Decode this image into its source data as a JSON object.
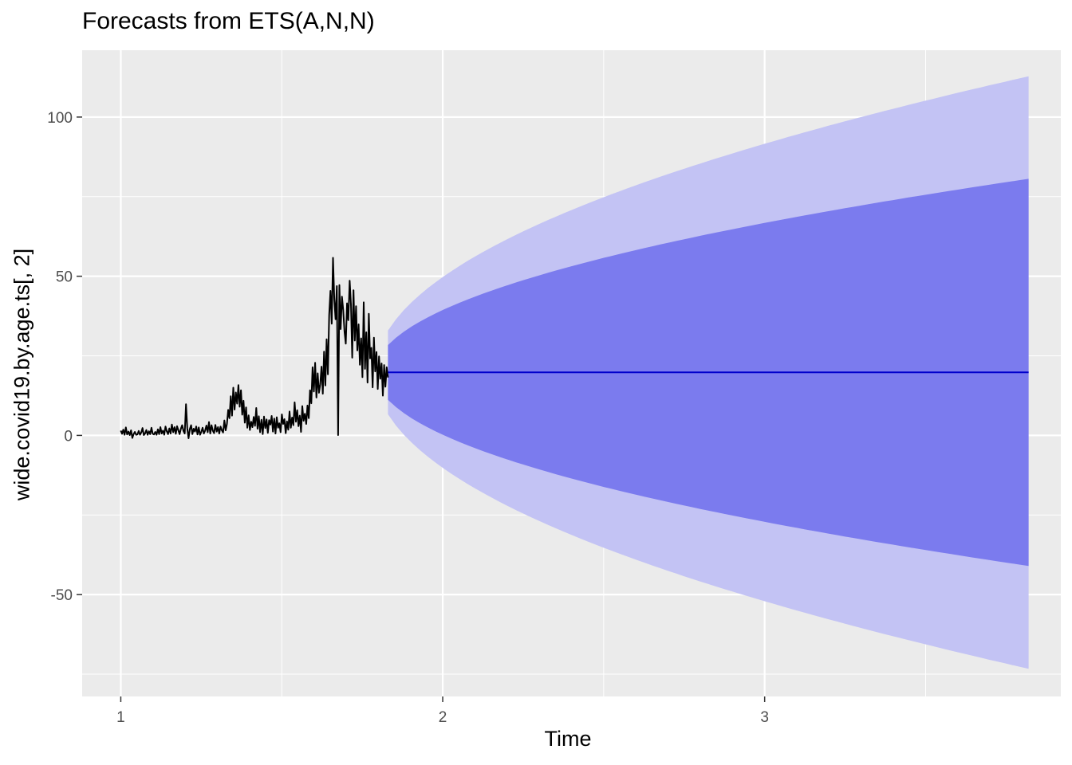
{
  "chart_data": {
    "type": "line",
    "title": "Forecasts from ETS(A,N,N)",
    "xlabel": "Time",
    "ylabel": "wide.covid19.by.age.ts[, 2]",
    "xlim": [
      0.88,
      3.92
    ],
    "ylim": [
      -82,
      121
    ],
    "x_ticks": [
      1,
      2,
      3
    ],
    "y_ticks": [
      -50,
      0,
      50,
      100
    ],
    "grid": true,
    "legend": "none",
    "colors": {
      "panel": "#ebebeb",
      "grid": "#ffffff",
      "observed": "#000000",
      "forecast": "#0000cc",
      "interval80": "#7b7bee",
      "interval95": "#c3c3f4"
    },
    "observed": {
      "x_start": 1.0,
      "x_end": 1.83,
      "y": [
        1.5,
        0.5,
        1.8,
        0.2,
        2.5,
        0.3,
        1.2,
        0.1,
        1.6,
        -0.8,
        0.4,
        1.1,
        0.2,
        0.3,
        1.4,
        0.2,
        0.9,
        2.3,
        0.1,
        0.6,
        1.7,
        0.2,
        1.3,
        0.4,
        2.4,
        0.5,
        0.3,
        1.1,
        0.2,
        1.9,
        0.4,
        2.6,
        0.6,
        1.5,
        0.2,
        2.8,
        1.3,
        0.4,
        2.2,
        0.6,
        3.4,
        1.0,
        2.6,
        0.5,
        2.9,
        1.6,
        0.4,
        2.1,
        3.2,
        1.4,
        0.6,
        9.8,
        2.2,
        -0.9,
        2.0,
        3.2,
        0.4,
        2.1,
        1.2,
        2.8,
        0.3,
        2.5,
        0.2,
        1.1,
        2.4,
        0.6,
        1.5,
        3.1,
        1.0,
        4.2,
        0.6,
        3.2,
        1.5,
        0.7,
        3.3,
        1.2,
        2.6,
        0.6,
        2.8,
        1.6,
        0.9,
        4.7,
        1.6,
        3.6,
        8.0,
        5.4,
        12.3,
        6.2,
        15.0,
        8.1,
        13.5,
        10.0,
        15.8,
        9.0,
        14.2,
        6.5,
        10.9,
        4.0,
        8.8,
        2.4,
        6.3,
        1.7,
        4.3,
        2.6,
        5.8,
        3.0,
        8.6,
        2.1,
        6.0,
        1.0,
        4.9,
        0.4,
        5.9,
        2.3,
        5.0,
        0.8,
        4.8,
        3.4,
        6.1,
        1.2,
        5.3,
        0.6,
        5.7,
        2.4,
        3.8,
        1.0,
        6.6,
        3.6,
        5.1,
        0.7,
        4.4,
        1.8,
        7.5,
        2.4,
        5.6,
        3.2,
        10.4,
        4.3,
        7.9,
        2.9,
        6.2,
        1.1,
        9.2,
        4.6,
        6.8,
        3.6,
        9.4,
        5.4,
        14.2,
        10.1,
        21.4,
        13.8,
        22.8,
        11.9,
        19.5,
        13.4,
        16.1,
        21.6,
        13.1,
        26.3,
        15.7,
        30.2,
        19.2,
        37.8,
        45.4,
        35.1,
        55.8,
        42.8,
        36.5,
        46.9,
        0.1,
        47.2,
        33.4,
        43.6,
        39.4,
        32.7,
        28.8,
        41.5,
        36.2,
        48.6,
        41.2,
        24.4,
        45.6,
        29.8,
        40.6,
        26.7,
        34.9,
        22.2,
        30.5,
        18.3,
        41.8,
        20.9,
        32.4,
        16.6,
        38.2,
        24.2,
        27.5,
        15.1,
        30.7,
        20.1,
        26.2,
        14.6,
        24.8,
        17.8,
        22.6,
        12.5,
        22.1,
        15.3,
        21.4,
        18.2
      ]
    },
    "forecast": {
      "x_start": 1.83,
      "x_end": 3.82,
      "point": 19.8,
      "lo80_end": -41.0,
      "hi80_end": 80.6,
      "lo95_end": -73.3,
      "hi95_end": 112.8
    }
  }
}
